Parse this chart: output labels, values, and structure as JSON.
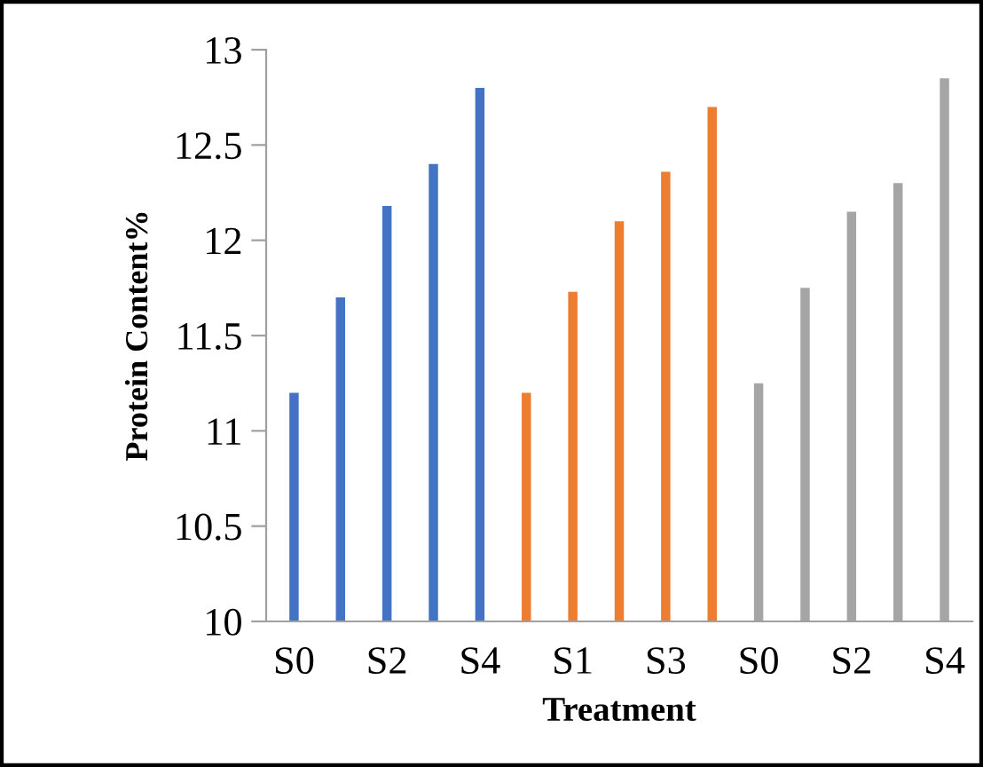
{
  "chart_data": {
    "type": "bar",
    "xlabel": "Treatment",
    "ylabel": "Protein Content%",
    "categories": [
      "S0",
      null,
      "S2",
      null,
      "S4",
      null,
      "S1",
      null,
      "S3",
      null,
      "S0",
      null,
      "S2",
      null,
      "S4"
    ],
    "values": [
      11.2,
      11.7,
      12.18,
      12.4,
      12.8,
      11.2,
      11.73,
      12.1,
      12.36,
      12.7,
      11.25,
      11.75,
      12.15,
      12.3,
      12.85
    ],
    "colors": [
      "#4472c4",
      "#4472c4",
      "#4472c4",
      "#4472c4",
      "#4472c4",
      "#ed7d31",
      "#ed7d31",
      "#ed7d31",
      "#ed7d31",
      "#ed7d31",
      "#a5a5a5",
      "#a5a5a5",
      "#a5a5a5",
      "#a5a5a5",
      "#a5a5a5"
    ],
    "ylim": [
      10,
      13
    ],
    "yticks": [
      10,
      10.5,
      11,
      11.5,
      12,
      12.5,
      13
    ],
    "grid": false
  }
}
